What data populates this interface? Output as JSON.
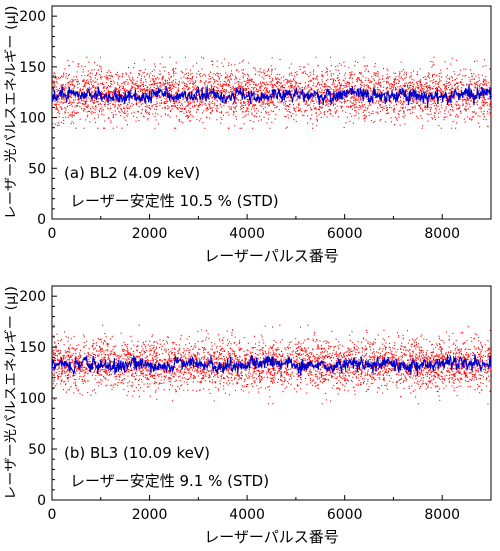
{
  "chart_data": [
    {
      "type": "scatter",
      "panel_label": "(a) BL2 (4.09 keV)",
      "stability_label": "レーザー安定性 10.5 % (STD)",
      "xlabel": "レーザーパルス番号",
      "ylabel": "レーザー光パルスエネルギー (μJ)",
      "xlim": [
        0,
        9000
      ],
      "ylim": [
        0,
        210
      ],
      "xticks": [
        "0",
        "2000",
        "4000",
        "6000",
        "8000"
      ],
      "yticks": [
        "0",
        "50",
        "100",
        "150",
        "200"
      ],
      "grid": false,
      "series": [
        {
          "color": "#ff0000",
          "mean": 124,
          "std_label": "10.5 %",
          "spread": 13,
          "min": 90,
          "max": 160
        },
        {
          "color": "#0000cc",
          "mean": 122,
          "spread": 4,
          "min": 108,
          "max": 134
        }
      ]
    },
    {
      "type": "scatter",
      "panel_label": "(b) BL3 (10.09 keV)",
      "stability_label": "レーザー安定性 9.1 % (STD)",
      "xlabel": "レーザーパルス番号",
      "ylabel": "レーザー光パルスエネルギー (μJ)",
      "xlim": [
        0,
        9000
      ],
      "ylim": [
        0,
        210
      ],
      "xticks": [
        "0",
        "2000",
        "4000",
        "6000",
        "8000"
      ],
      "yticks": [
        "0",
        "50",
        "100",
        "150",
        "200"
      ],
      "grid": false,
      "series": [
        {
          "color": "#ff0000",
          "mean": 134,
          "std_label": "9.1 %",
          "spread": 12,
          "min": 95,
          "max": 172
        },
        {
          "color": "#0000cc",
          "mean": 133,
          "spread": 4,
          "min": 115,
          "max": 145
        }
      ]
    }
  ]
}
